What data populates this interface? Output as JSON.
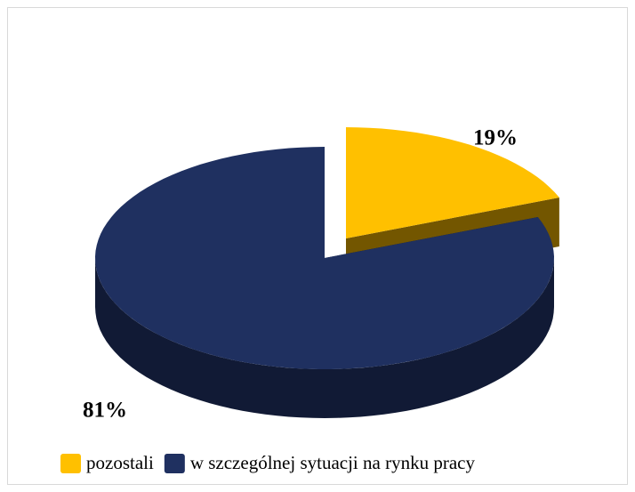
{
  "chart_data": {
    "type": "pie",
    "categories": [
      "pozostali",
      "w szczególnej sytuacji na rynku pracy"
    ],
    "values": [
      19,
      81
    ],
    "value_labels": [
      "19%",
      "81%"
    ],
    "colors": [
      "#ffc000",
      "#1f3060"
    ],
    "legend": "bottom"
  }
}
